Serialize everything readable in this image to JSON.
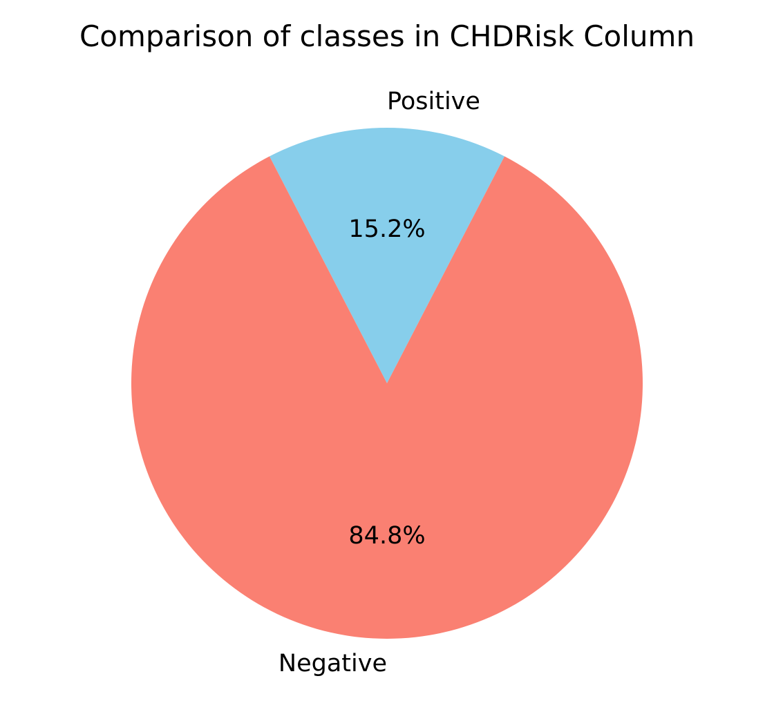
{
  "chart_data": {
    "type": "pie",
    "title": "Comparison of classes in CHDRisk Column",
    "slices": [
      {
        "label": "Positive",
        "value": 15.2,
        "pct_label": "15.2%",
        "color": "#87CEEB"
      },
      {
        "label": "Negative",
        "value": 84.8,
        "pct_label": "84.8%",
        "color": "#FA8072"
      }
    ]
  }
}
